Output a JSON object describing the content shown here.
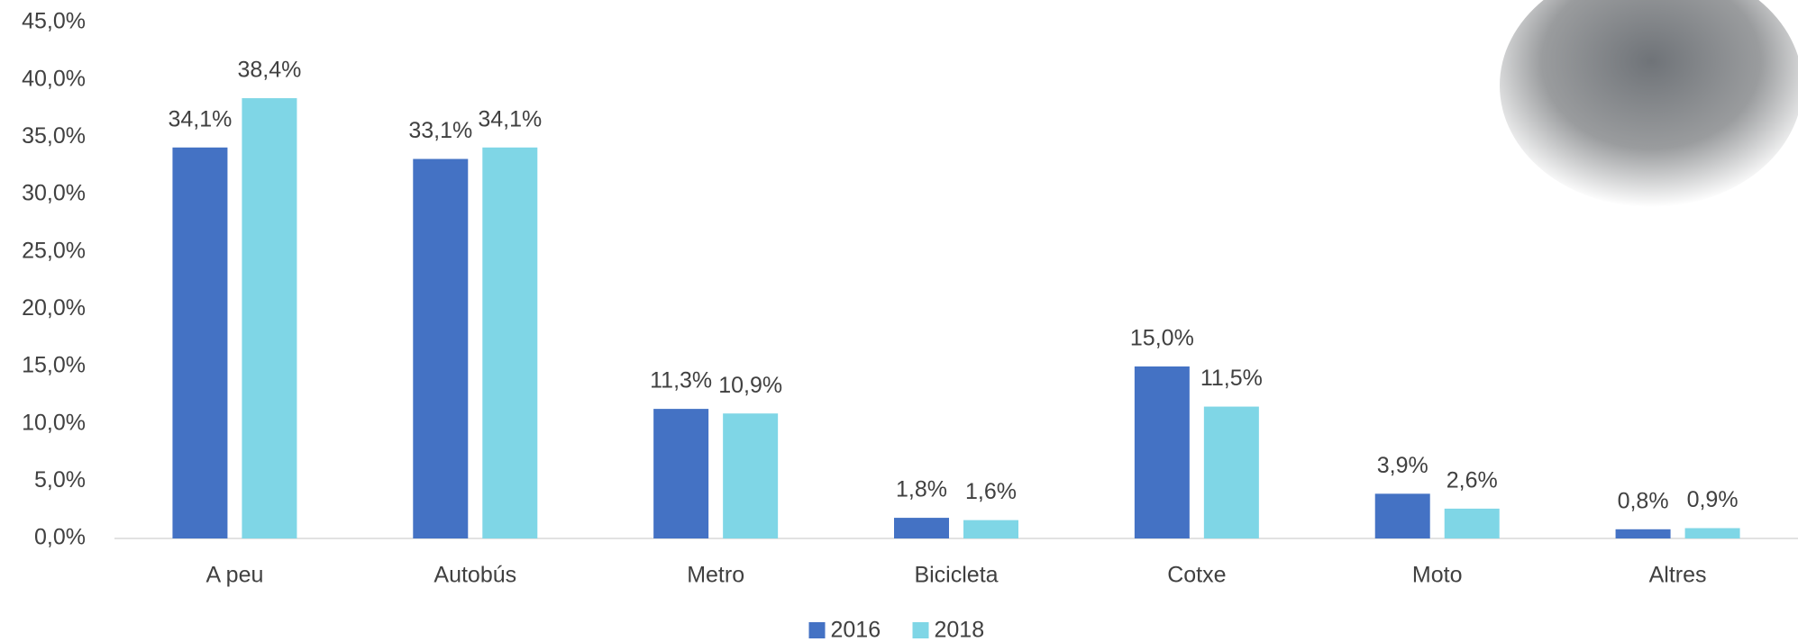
{
  "chart_data": {
    "type": "bar",
    "categories": [
      "A peu",
      "Autobús",
      "Metro",
      "Bicicleta",
      "Cotxe",
      "Moto",
      "Altres"
    ],
    "series": [
      {
        "name": "2016",
        "color": "#4472c4",
        "values": [
          34.1,
          33.1,
          11.3,
          1.8,
          15.0,
          3.9,
          0.8
        ],
        "value_labels": [
          "34,1%",
          "33,1%",
          "11,3%",
          "1,8%",
          "15,0%",
          "3,9%",
          "0,8%"
        ]
      },
      {
        "name": "2018",
        "color": "#7fd6e6",
        "values": [
          38.4,
          34.1,
          10.9,
          1.6,
          11.5,
          2.6,
          0.9
        ],
        "value_labels": [
          "38,4%",
          "34,1%",
          "10,9%",
          "1,6%",
          "11,5%",
          "2,6%",
          "0,9%"
        ]
      }
    ],
    "ylim": [
      0,
      45
    ],
    "yticks": [
      {
        "value": 0,
        "label": "0,0%"
      },
      {
        "value": 5,
        "label": "5,0%"
      },
      {
        "value": 10,
        "label": "10,0%"
      },
      {
        "value": 15,
        "label": "15,0%"
      },
      {
        "value": 20,
        "label": "20,0%"
      },
      {
        "value": 25,
        "label": "25,0%"
      },
      {
        "value": 30,
        "label": "30,0%"
      },
      {
        "value": 35,
        "label": "35,0%"
      },
      {
        "value": 40,
        "label": "40,0%"
      },
      {
        "value": 45,
        "label": "45,0%"
      }
    ],
    "legend": "bottom"
  }
}
